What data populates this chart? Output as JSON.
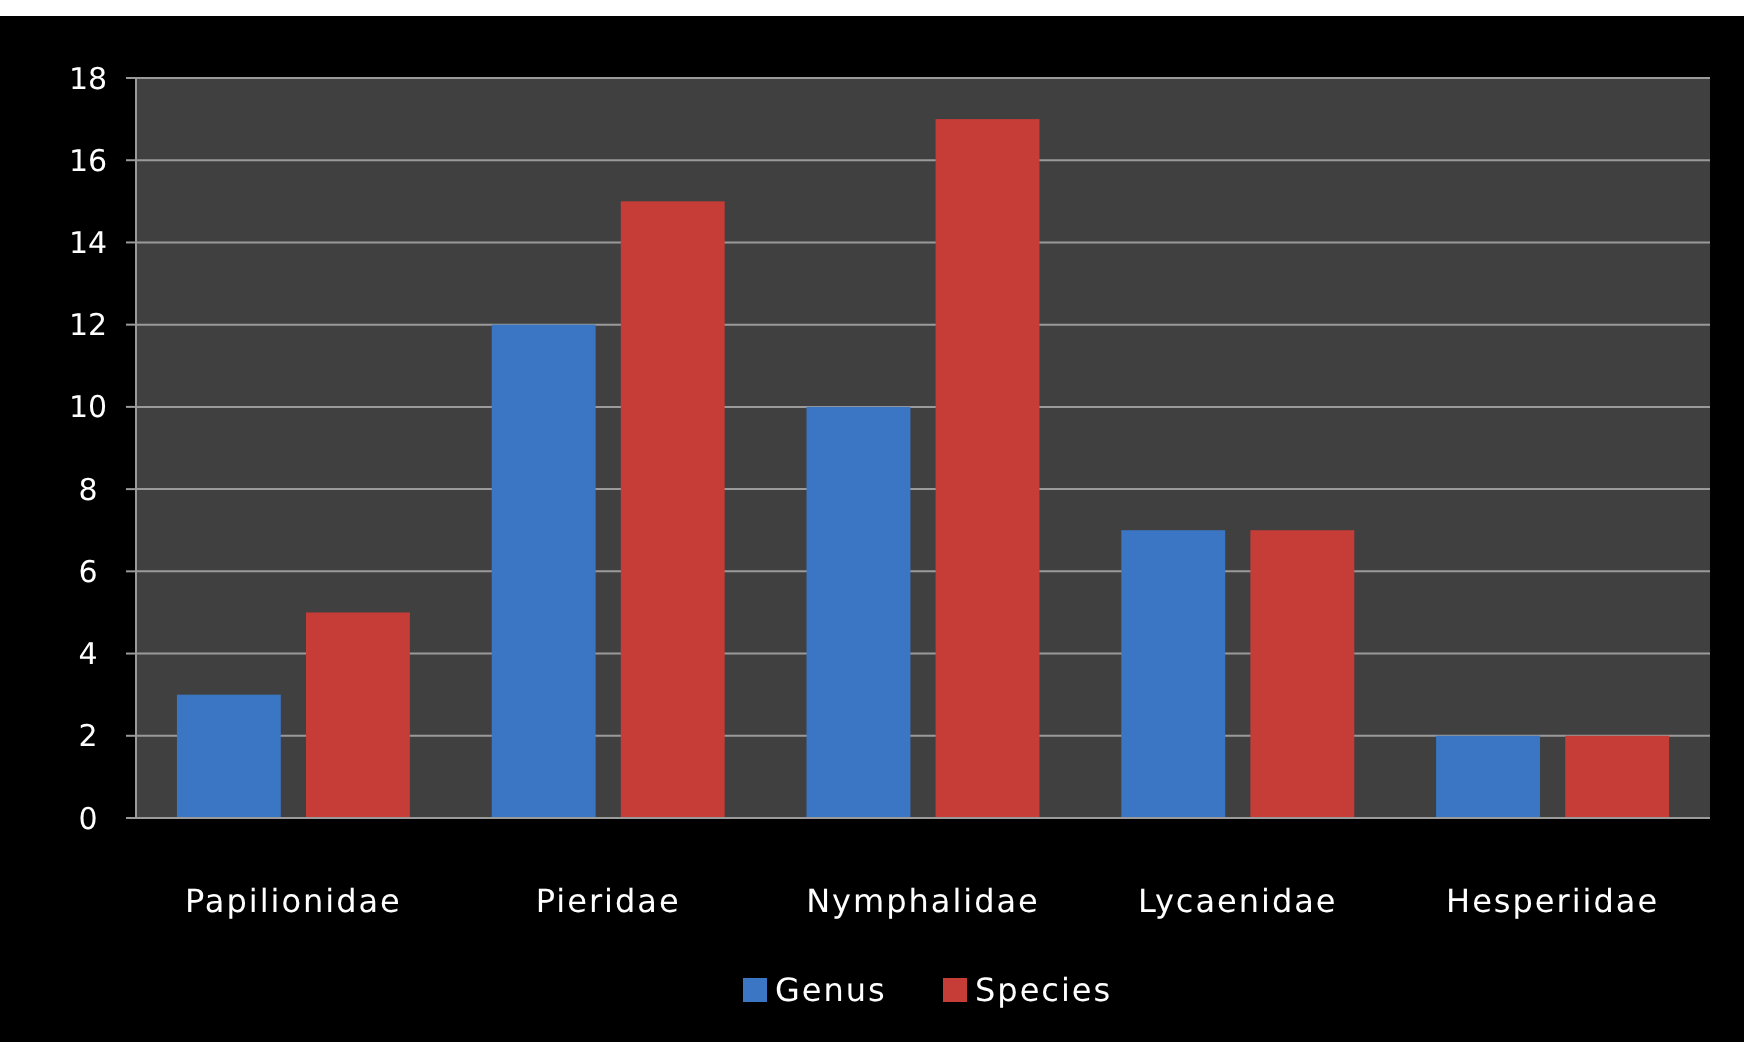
{
  "chart_data": {
    "type": "bar",
    "categories": [
      "Papilionidae",
      "Pieridae",
      "Nymphalidae",
      "Lycaenidae",
      "Hesperiidae"
    ],
    "series": [
      {
        "name": "Genus",
        "color": "#3b76c4",
        "values": [
          3,
          12,
          10,
          7,
          2
        ]
      },
      {
        "name": "Species",
        "color": "#c63c37",
        "values": [
          5,
          15,
          17,
          7,
          2
        ]
      }
    ],
    "ylim": [
      0,
      18
    ],
    "yticks": [
      0,
      2,
      4,
      6,
      8,
      10,
      12,
      14,
      16,
      18
    ],
    "grid": "y",
    "legend": "bottom"
  }
}
